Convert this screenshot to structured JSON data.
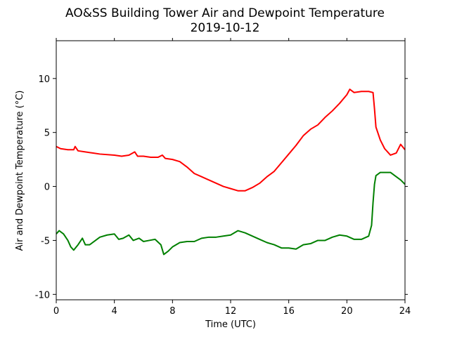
{
  "chart_data": {
    "type": "line",
    "title": "AO&SS Building Tower Air and Dewpoint Temperature",
    "subtitle": "2019-10-12",
    "xlabel": "Time (UTC)",
    "ylabel": "Air and Dewpoint Temperature (°C)",
    "xlim": [
      0,
      24
    ],
    "ylim": [
      -10.5,
      13.5
    ],
    "xticks": [
      0,
      4,
      8,
      12,
      16,
      20,
      24
    ],
    "yticks": [
      -10,
      -5,
      0,
      5,
      10
    ],
    "grid": false,
    "legend": "none",
    "series": [
      {
        "color": "#ff0000",
        "points": [
          [
            0,
            3.7
          ],
          [
            0.3,
            3.5
          ],
          [
            0.8,
            3.4
          ],
          [
            1.2,
            3.4
          ],
          [
            1.3,
            3.7
          ],
          [
            1.5,
            3.3
          ],
          [
            2.0,
            3.2
          ],
          [
            2.5,
            3.1
          ],
          [
            3.0,
            3.0
          ],
          [
            4.0,
            2.9
          ],
          [
            4.5,
            2.8
          ],
          [
            5.0,
            2.9
          ],
          [
            5.4,
            3.2
          ],
          [
            5.6,
            2.8
          ],
          [
            6.0,
            2.8
          ],
          [
            6.5,
            2.7
          ],
          [
            7.0,
            2.7
          ],
          [
            7.3,
            2.9
          ],
          [
            7.5,
            2.6
          ],
          [
            8.0,
            2.5
          ],
          [
            8.5,
            2.3
          ],
          [
            9.0,
            1.8
          ],
          [
            9.5,
            1.2
          ],
          [
            10.0,
            0.9
          ],
          [
            10.5,
            0.6
          ],
          [
            11.0,
            0.3
          ],
          [
            11.5,
            0.0
          ],
          [
            12.0,
            -0.2
          ],
          [
            12.5,
            -0.4
          ],
          [
            13.0,
            -0.4
          ],
          [
            13.5,
            -0.1
          ],
          [
            14.0,
            0.3
          ],
          [
            14.5,
            0.9
          ],
          [
            15.0,
            1.4
          ],
          [
            15.5,
            2.2
          ],
          [
            16.0,
            3.0
          ],
          [
            16.5,
            3.8
          ],
          [
            17.0,
            4.7
          ],
          [
            17.5,
            5.3
          ],
          [
            18.0,
            5.7
          ],
          [
            18.5,
            6.4
          ],
          [
            19.0,
            7.0
          ],
          [
            19.5,
            7.7
          ],
          [
            20.0,
            8.5
          ],
          [
            20.2,
            9.0
          ],
          [
            20.5,
            8.7
          ],
          [
            21.0,
            8.8
          ],
          [
            21.5,
            8.8
          ],
          [
            21.8,
            8.7
          ],
          [
            21.9,
            7.2
          ],
          [
            22.0,
            5.5
          ],
          [
            22.3,
            4.3
          ],
          [
            22.6,
            3.5
          ],
          [
            23.0,
            2.9
          ],
          [
            23.4,
            3.1
          ],
          [
            23.7,
            3.9
          ],
          [
            24.0,
            3.4
          ]
        ]
      },
      {
        "color": "#008000",
        "points": [
          [
            0,
            -4.4
          ],
          [
            0.2,
            -4.1
          ],
          [
            0.5,
            -4.4
          ],
          [
            0.8,
            -5.0
          ],
          [
            1.0,
            -5.6
          ],
          [
            1.2,
            -5.9
          ],
          [
            1.5,
            -5.4
          ],
          [
            1.8,
            -4.8
          ],
          [
            2.0,
            -5.4
          ],
          [
            2.3,
            -5.4
          ],
          [
            2.7,
            -5.0
          ],
          [
            3.0,
            -4.7
          ],
          [
            3.5,
            -4.5
          ],
          [
            4.0,
            -4.4
          ],
          [
            4.3,
            -4.9
          ],
          [
            4.6,
            -4.8
          ],
          [
            5.0,
            -4.5
          ],
          [
            5.3,
            -5.0
          ],
          [
            5.7,
            -4.8
          ],
          [
            6.0,
            -5.1
          ],
          [
            6.4,
            -5.0
          ],
          [
            6.8,
            -4.9
          ],
          [
            7.2,
            -5.4
          ],
          [
            7.4,
            -6.3
          ],
          [
            7.7,
            -6.0
          ],
          [
            8.0,
            -5.6
          ],
          [
            8.5,
            -5.2
          ],
          [
            9.0,
            -5.1
          ],
          [
            9.5,
            -5.1
          ],
          [
            10.0,
            -4.8
          ],
          [
            10.5,
            -4.7
          ],
          [
            11.0,
            -4.7
          ],
          [
            11.5,
            -4.6
          ],
          [
            12.0,
            -4.5
          ],
          [
            12.5,
            -4.1
          ],
          [
            13.0,
            -4.3
          ],
          [
            13.5,
            -4.6
          ],
          [
            14.0,
            -4.9
          ],
          [
            14.5,
            -5.2
          ],
          [
            15.0,
            -5.4
          ],
          [
            15.5,
            -5.7
          ],
          [
            16.0,
            -5.7
          ],
          [
            16.5,
            -5.8
          ],
          [
            17.0,
            -5.4
          ],
          [
            17.5,
            -5.3
          ],
          [
            18.0,
            -5.0
          ],
          [
            18.5,
            -5.0
          ],
          [
            19.0,
            -4.7
          ],
          [
            19.5,
            -4.5
          ],
          [
            20.0,
            -4.6
          ],
          [
            20.5,
            -4.9
          ],
          [
            21.0,
            -4.9
          ],
          [
            21.5,
            -4.6
          ],
          [
            21.7,
            -3.6
          ],
          [
            21.8,
            -1.5
          ],
          [
            21.9,
            0.2
          ],
          [
            22.0,
            1.0
          ],
          [
            22.3,
            1.3
          ],
          [
            22.7,
            1.3
          ],
          [
            23.0,
            1.3
          ],
          [
            23.3,
            1.0
          ],
          [
            23.7,
            0.6
          ],
          [
            24.0,
            0.2
          ]
        ]
      }
    ]
  }
}
